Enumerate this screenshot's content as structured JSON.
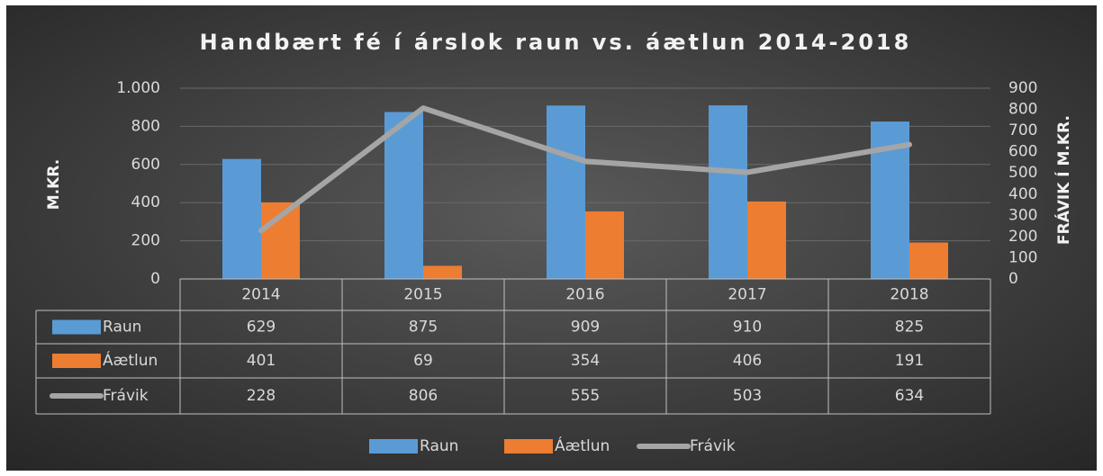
{
  "chart_data": {
    "type": "bar",
    "title": "Handbært fé í árslok raun vs. áætlun 2014-2018",
    "y_label": "M.KR.",
    "y2_label": "FRÁVIK Í M.KR.",
    "categories": [
      "2014",
      "2015",
      "2016",
      "2017",
      "2018"
    ],
    "series": [
      {
        "name": "Raun",
        "type": "bar",
        "color": "#5b9bd5",
        "values": [
          629,
          875,
          909,
          910,
          825
        ]
      },
      {
        "name": "Áætlun",
        "type": "bar",
        "color": "#ed7d31",
        "values": [
          401,
          69,
          354,
          406,
          191
        ]
      },
      {
        "name": "Frávik",
        "type": "line",
        "axis": "y2",
        "color": "#a5a5a5",
        "values": [
          228,
          806,
          555,
          503,
          634
        ]
      }
    ],
    "ylim": [
      0,
      1000
    ],
    "yticks": [
      0,
      200,
      400,
      600,
      800,
      {
        "value": 1000,
        "label": "1.000"
      }
    ],
    "y2lim": [
      0,
      900
    ],
    "y2ticks": [
      0,
      100,
      200,
      300,
      400,
      500,
      600,
      700,
      800,
      900
    ],
    "grid": true,
    "legend": "bottom",
    "data_table": true
  }
}
